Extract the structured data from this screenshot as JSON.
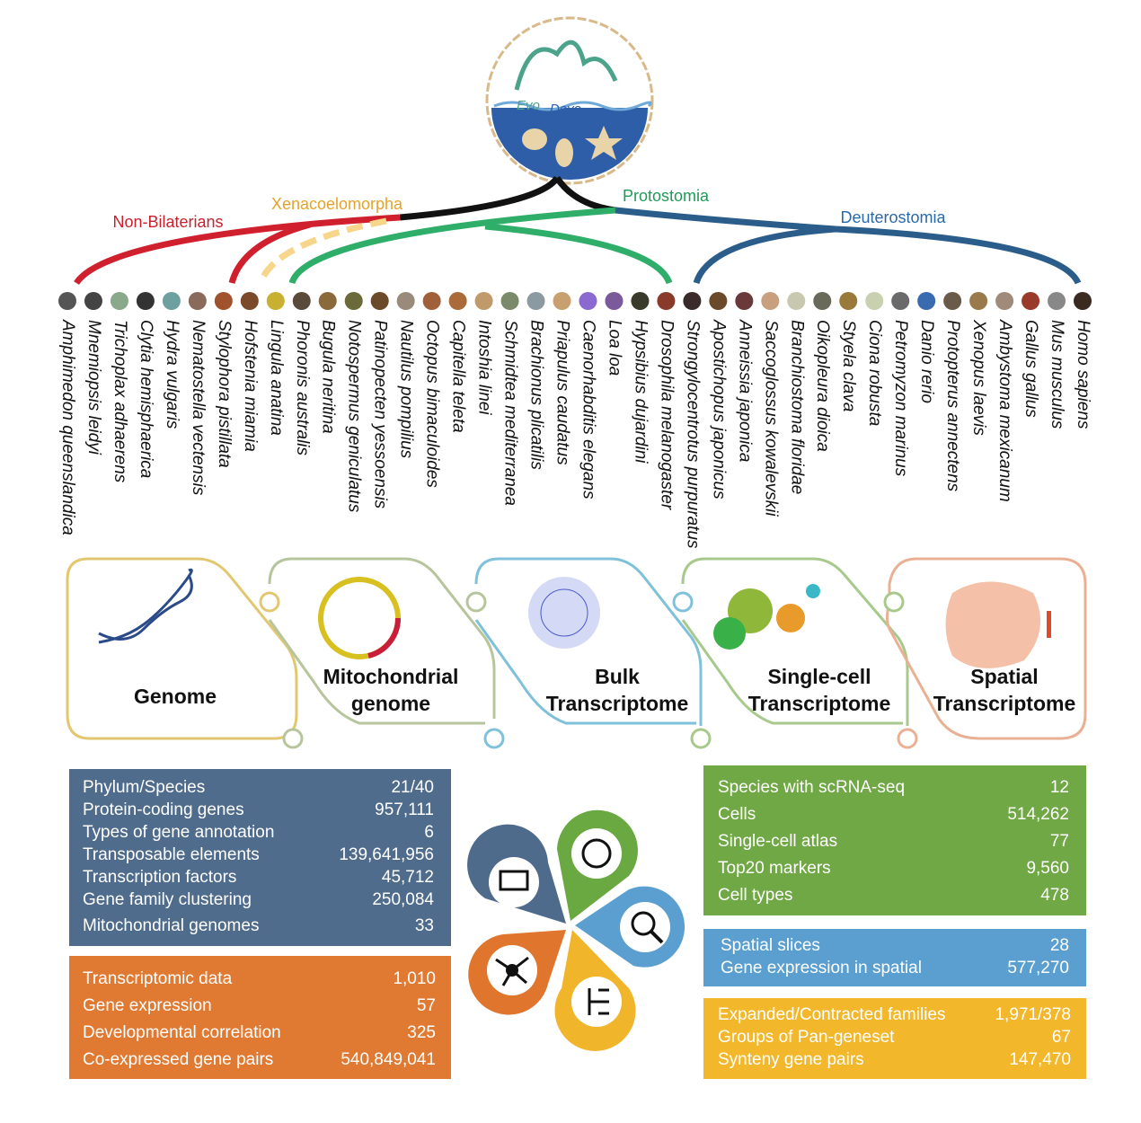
{
  "logo": {
    "text": [
      "Evo",
      "Devo"
    ]
  },
  "clades": [
    "Non-Bilaterians",
    "Xenacoelomorpha",
    "Protostomia",
    "Deuterostomia"
  ],
  "species": [
    "Amphimedon queenslandica",
    "Mnemiopsis leidyi",
    "Trichoplax adhaerens",
    "Clytia hemisphaerica",
    "Hydra vulgaris",
    "Nematostella vectensis",
    "Stylophora pistillata",
    "Hofstenia miamia",
    "Lingula anatina",
    "Phoronis australis",
    "Bugula neritina",
    "Notospermus geniculatus",
    "Patinopecten yessoensis",
    "Nautilus pompilius",
    "Octopus bimaculoides",
    "Capitella teleta",
    "Intoshia linei",
    "Schmidtea mediterranea",
    "Brachionus plicatilis",
    "Priapulus caudatus",
    "Caenorhabditis elegans",
    "Loa loa",
    "Hypsibius dujardini",
    "Drosophila melanogaster",
    "Strongylocentrotus purpuratus",
    "Apostichopus japonicus",
    "Anneissia japonica",
    "Saccoglossus kowalevskii",
    "Branchiostoma floridae",
    "Oikopleura dioica",
    "Styela clava",
    "Ciona robusta",
    "Petromyzon marinus",
    "Danio rerio",
    "Protopterus annectens",
    "Xenopus laevis",
    "Ambystoma mexicanum",
    "Gallus gallus",
    "Mus musculus",
    "Homo sapiens"
  ],
  "modules": [
    [
      "Genome"
    ],
    [
      "Mitochondrial",
      "genome"
    ],
    [
      "Bulk",
      "Transcriptome"
    ],
    [
      "Single-cell",
      "Transcriptome"
    ],
    [
      "Spatial",
      "Transcriptome"
    ]
  ],
  "stats": [
    {
      "rows": [
        [
          "Phylum/Species",
          "21/40"
        ],
        [
          "Protein-coding genes",
          "957,111"
        ],
        [
          "Types of gene annotation",
          "6"
        ],
        [
          "Transposable elements",
          "139,641,956"
        ],
        [
          "Transcription factors",
          "45,712"
        ],
        [
          "Gene family clustering",
          "250,084"
        ],
        [
          "Mitochondrial genomes",
          "33"
        ]
      ]
    },
    {
      "rows": [
        [
          "Transcriptomic data",
          "1,010"
        ],
        [
          "Gene expression",
          "57"
        ],
        [
          "Developmental correlation",
          "325"
        ],
        [
          "Co-expressed gene pairs",
          "540,849,041"
        ]
      ]
    },
    {
      "rows": [
        [
          "Species with scRNA-seq",
          "12"
        ],
        [
          "Cells",
          "514,262"
        ],
        [
          "Single-cell atlas",
          "77"
        ],
        [
          "Top20 markers",
          "9,560"
        ],
        [
          "Cell types",
          "478"
        ]
      ]
    },
    {
      "rows": [
        [
          "Spatial slices",
          "28"
        ],
        [
          "Gene expression in spatial",
          "577,270"
        ]
      ]
    },
    {
      "rows": [
        [
          "Expanded/Contracted families",
          "1,971/378"
        ],
        [
          "Groups of Pan-geneset",
          "67"
        ],
        [
          "Synteny gene pairs",
          "147,470"
        ]
      ]
    }
  ]
}
